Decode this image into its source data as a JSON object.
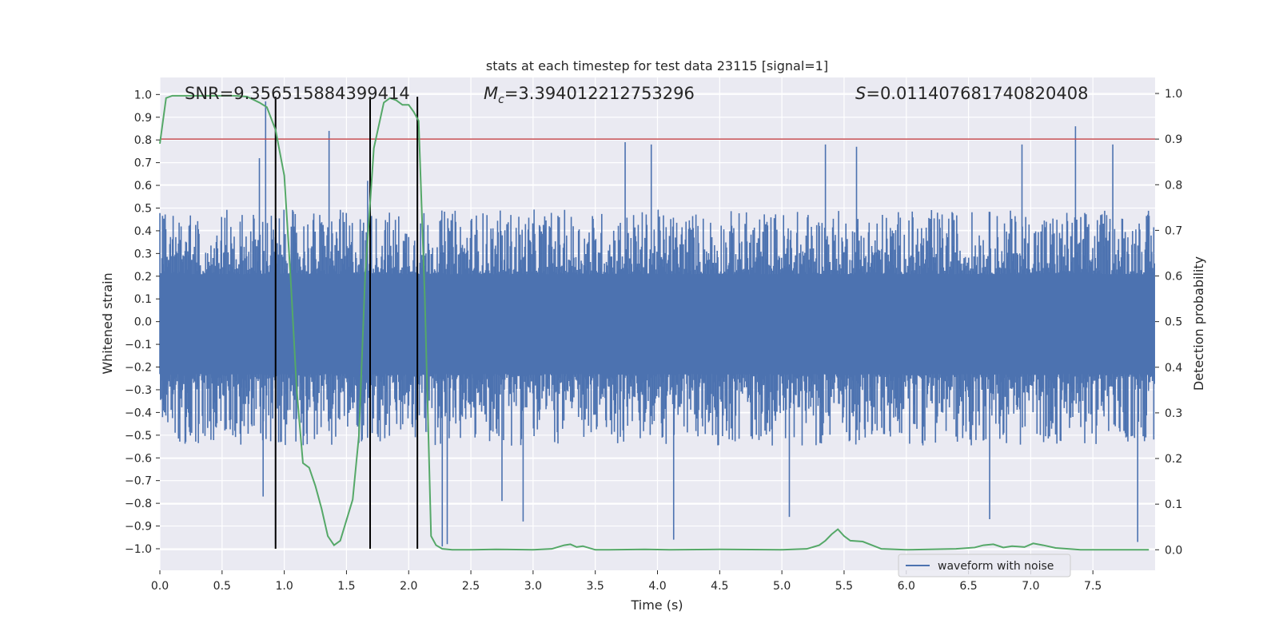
{
  "chart_data": {
    "type": "line",
    "title": "stats at each timestep for test data 23115 [signal=1]",
    "xlabel": "Time (s)",
    "ylabel": "Whitened strain",
    "y2label": "Detection probability",
    "xlim": [
      0.0,
      8.0
    ],
    "ylim": [
      -1.095,
      1.075
    ],
    "y2lim": [
      -0.045,
      1.035
    ],
    "x_ticks": [
      0.0,
      0.5,
      1.0,
      1.5,
      2.0,
      2.5,
      3.0,
      3.5,
      4.0,
      4.5,
      5.0,
      5.5,
      6.0,
      6.5,
      7.0,
      7.5
    ],
    "x_tick_labels": [
      "0.0",
      "0.5",
      "1.0",
      "1.5",
      "2.0",
      "2.5",
      "3.0",
      "3.5",
      "4.0",
      "4.5",
      "5.0",
      "5.5",
      "6.0",
      "6.5",
      "7.0",
      "7.5"
    ],
    "y_ticks": [
      -1.0,
      -0.9,
      -0.8,
      -0.7,
      -0.6,
      -0.5,
      -0.4,
      -0.3,
      -0.2,
      -0.1,
      0.0,
      0.1,
      0.2,
      0.3,
      0.4,
      0.5,
      0.6,
      0.7,
      0.8,
      0.9,
      1.0
    ],
    "y_tick_labels": [
      "−1.0",
      "−0.9",
      "−0.8",
      "−0.7",
      "−0.6",
      "−0.5",
      "−0.4",
      "−0.3",
      "−0.2",
      "−0.1",
      "0.0",
      "0.1",
      "0.2",
      "0.3",
      "0.4",
      "0.5",
      "0.6",
      "0.7",
      "0.8",
      "0.9",
      "1.0"
    ],
    "y2_ticks": [
      0.0,
      0.1,
      0.2,
      0.3,
      0.4,
      0.5,
      0.6,
      0.7,
      0.8,
      0.9,
      1.0
    ],
    "y2_tick_labels": [
      "0.0",
      "0.1",
      "0.2",
      "0.3",
      "0.4",
      "0.5",
      "0.6",
      "0.7",
      "0.8",
      "0.9",
      "1.0"
    ],
    "grid": true,
    "legend": {
      "placement": "bottom-right",
      "entries": [
        "waveform with noise"
      ]
    },
    "annotations": {
      "snr": "SNR=9.356515884399414",
      "mc_symbol": "M",
      "mc_sub": "c",
      "mc_value": "=3.394012212753296",
      "s_symbol": "S",
      "s_value": "=0.011407681740820408"
    },
    "waveform": {
      "name": "waveform with noise",
      "color": "#4c72b0",
      "duration": 8.0,
      "typical_upper": 0.38,
      "typical_lower": -0.42,
      "upper_peaks": [
        [
          0.85,
          0.97
        ],
        [
          0.8,
          0.72
        ],
        [
          1.36,
          0.84
        ],
        [
          1.67,
          0.62
        ],
        [
          2.07,
          0.78
        ],
        [
          3.74,
          0.79
        ],
        [
          3.95,
          0.78
        ],
        [
          5.35,
          0.78
        ],
        [
          5.6,
          0.77
        ],
        [
          6.93,
          0.78
        ],
        [
          7.36,
          0.86
        ],
        [
          7.66,
          0.78
        ]
      ],
      "lower_peaks": [
        [
          0.93,
          -0.98
        ],
        [
          0.83,
          -0.77
        ],
        [
          2.27,
          -0.99
        ],
        [
          2.31,
          -0.98
        ],
        [
          2.75,
          -0.79
        ],
        [
          2.92,
          -0.88
        ],
        [
          4.13,
          -0.96
        ],
        [
          5.06,
          -0.86
        ],
        [
          6.67,
          -0.87
        ],
        [
          7.86,
          -0.97
        ]
      ]
    },
    "detection_probability": {
      "color": "#55a868",
      "x": [
        0.0,
        0.05,
        0.1,
        0.2,
        0.4,
        0.6,
        0.7,
        0.8,
        0.86,
        0.93,
        1.0,
        1.05,
        1.1,
        1.15,
        1.2,
        1.25,
        1.3,
        1.35,
        1.4,
        1.45,
        1.55,
        1.6,
        1.65,
        1.72,
        1.8,
        1.85,
        1.9,
        1.95,
        2.0,
        2.04,
        2.08,
        2.13,
        2.18,
        2.22,
        2.27,
        2.35,
        2.5,
        2.7,
        3.0,
        3.15,
        3.25,
        3.3,
        3.35,
        3.4,
        3.5,
        3.6,
        3.9,
        4.1,
        4.5,
        5.0,
        5.2,
        5.3,
        5.35,
        5.4,
        5.45,
        5.5,
        5.55,
        5.65,
        5.8,
        6.0,
        6.4,
        6.55,
        6.62,
        6.7,
        6.78,
        6.85,
        6.95,
        7.02,
        7.1,
        7.2,
        7.4,
        7.6,
        7.95
      ],
      "y": [
        0.89,
        0.99,
        0.995,
        0.995,
        0.995,
        0.995,
        0.993,
        0.98,
        0.97,
        0.92,
        0.82,
        0.6,
        0.35,
        0.19,
        0.18,
        0.14,
        0.09,
        0.03,
        0.01,
        0.02,
        0.11,
        0.25,
        0.6,
        0.88,
        0.98,
        0.99,
        0.985,
        0.975,
        0.975,
        0.96,
        0.94,
        0.55,
        0.03,
        0.01,
        0.002,
        0.0,
        0.0,
        0.001,
        0.0,
        0.002,
        0.01,
        0.012,
        0.006,
        0.008,
        0.0,
        0.0,
        0.001,
        0.0,
        0.001,
        0.0,
        0.002,
        0.01,
        0.02,
        0.034,
        0.045,
        0.03,
        0.02,
        0.018,
        0.002,
        0.0,
        0.002,
        0.005,
        0.01,
        0.012,
        0.005,
        0.008,
        0.006,
        0.014,
        0.01,
        0.004,
        0.0,
        0.0,
        0.0
      ]
    },
    "threshold": {
      "color": "#c44e52",
      "y2": 0.9
    },
    "event_markers": {
      "color": "#000000",
      "x": [
        0.93,
        1.69,
        2.07
      ],
      "y_range": [
        -1.0,
        0.99
      ]
    }
  }
}
